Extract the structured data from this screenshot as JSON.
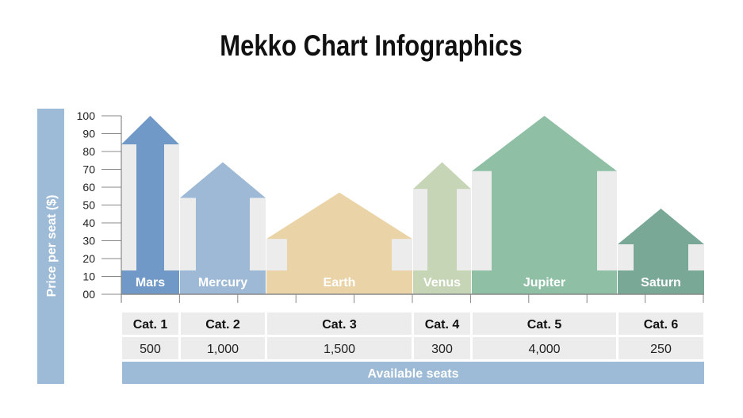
{
  "chart_data": {
    "type": "bar",
    "variant": "mekko-arrow",
    "title": "Mekko Chart Infographics",
    "ylabel": "Price per seat ($)",
    "xlabel": "Available seats",
    "ylim": [
      0,
      100
    ],
    "yticks": [
      "00",
      "10",
      "20",
      "30",
      "40",
      "50",
      "60",
      "70",
      "80",
      "90",
      "100"
    ],
    "categories": [
      "Cat. 1",
      "Cat. 2",
      "Cat. 3",
      "Cat. 4",
      "Cat. 5",
      "Cat. 6"
    ],
    "segments": [
      {
        "name": "Mars",
        "category": "Cat. 1",
        "seats": "500",
        "price": 100,
        "shoulder": 84,
        "color": "#7199c8"
      },
      {
        "name": "Mercury",
        "category": "Cat. 2",
        "seats": "1,000",
        "price": 74,
        "shoulder": 54,
        "color": "#9db9d6"
      },
      {
        "name": "Earth",
        "category": "Cat. 3",
        "seats": "1,500",
        "price": 57,
        "shoulder": 31,
        "color": "#ead3a6"
      },
      {
        "name": "Venus",
        "category": "Cat. 4",
        "seats": "300",
        "price": 74,
        "shoulder": 59,
        "color": "#c6d5b6"
      },
      {
        "name": "Jupiter",
        "category": "Cat. 5",
        "seats": "4,000",
        "price": 100,
        "shoulder": 69,
        "color": "#8fc0a6"
      },
      {
        "name": "Saturn",
        "category": "Cat. 6",
        "seats": "250",
        "price": 48,
        "shoulder": 28,
        "color": "#7aa896"
      }
    ],
    "grid": false,
    "colors": {
      "axis_bar": "#9dbbd6",
      "panel": "#ececec"
    }
  }
}
